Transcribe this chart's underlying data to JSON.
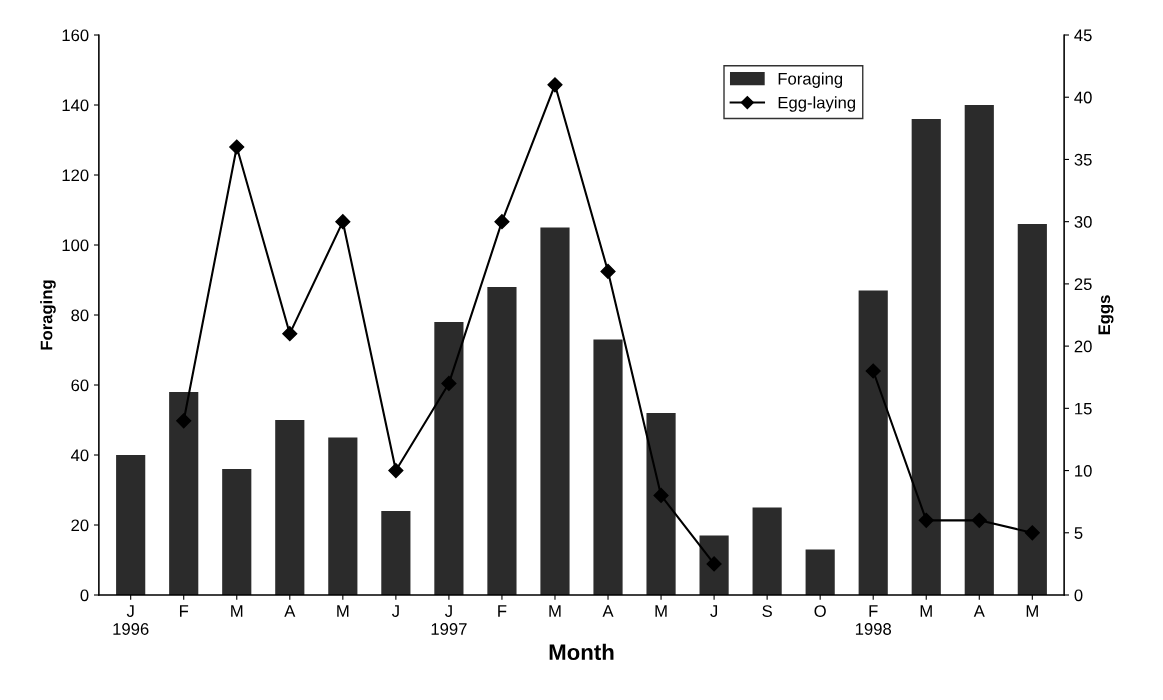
{
  "chart_data": {
    "type": "bar",
    "xlabel": "Month",
    "ylabel": "Foraging",
    "y2label": "Eggs",
    "categories": [
      "J\n1996",
      "F",
      "M",
      "A",
      "M",
      "J",
      "J\n1997",
      "F",
      "M",
      "A",
      "M",
      "J",
      "S",
      "O",
      "F\n1998",
      "M",
      "A",
      "M"
    ],
    "series": [
      {
        "name": "Foraging",
        "color": "#2b2b2b",
        "values": [
          40,
          58,
          36,
          50,
          45,
          24,
          78,
          88,
          105,
          73,
          52,
          17,
          25,
          13,
          87,
          136,
          140,
          106
        ]
      },
      {
        "name": "Egg-laying",
        "type": "line",
        "axis": "y2",
        "color": "#000000",
        "marker": "diamond",
        "values": [
          null,
          14,
          36,
          21,
          30,
          10,
          17,
          30,
          41,
          26,
          8,
          2.5,
          null,
          null,
          18,
          6,
          6,
          5
        ]
      }
    ],
    "ylim": [
      0,
      160
    ],
    "yticks": [
      0,
      20,
      40,
      60,
      80,
      100,
      120,
      140,
      160
    ],
    "y2lim": [
      0,
      45
    ],
    "y2ticks": [
      0,
      5,
      10,
      15,
      20,
      25,
      30,
      35,
      40,
      45
    ],
    "grid": false,
    "legend": "top right"
  }
}
